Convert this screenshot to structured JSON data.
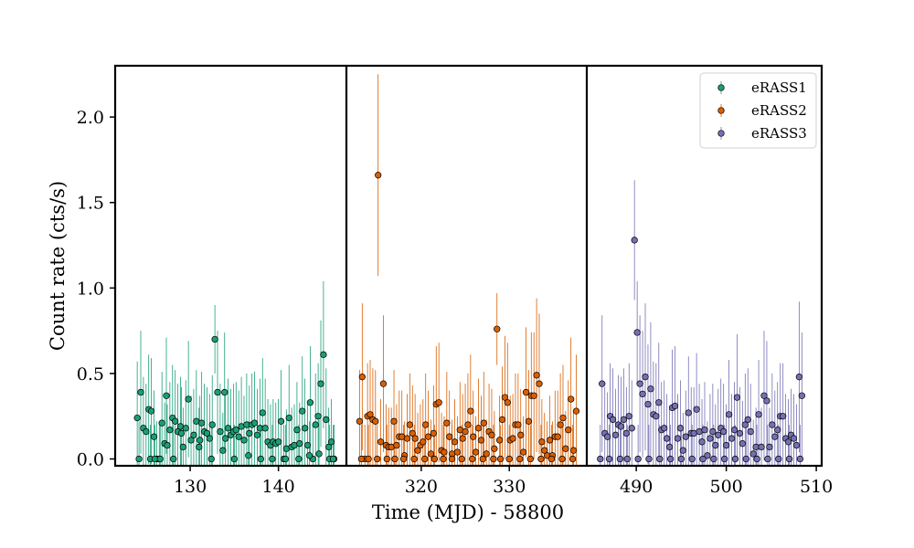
{
  "chart_data": {
    "type": "scatter",
    "xlabel": "Time (MJD) - 58800",
    "ylabel": "Count rate (cts/s)",
    "ylim": [
      -0.04,
      2.3
    ],
    "yticks": [
      "0.0",
      "0.5",
      "1.0",
      "1.5",
      "2.0"
    ],
    "legend_position": "top-right",
    "panels": [
      {
        "xlim": [
          121.5,
          147.7
        ],
        "xticks": [
          "130",
          "140"
        ],
        "series": [
          {
            "name": "eRASS1",
            "color": "#1b9e77",
            "x": [
              124.0,
              124.4,
              124.7,
              125.0,
              125.3,
              125.6,
              125.9,
              126.2,
              126.5,
              126.8,
              127.1,
              127.4,
              127.7,
              128.0,
              128.3,
              128.6,
              128.9,
              129.2,
              129.5,
              129.8,
              130.1,
              130.4,
              130.7,
              131.0,
              131.3,
              131.6,
              131.9,
              132.2,
              132.5,
              132.8,
              133.1,
              133.4,
              133.7,
              134.0,
              134.3,
              134.6,
              134.9,
              135.2,
              135.5,
              135.8,
              136.1,
              136.4,
              136.7,
              137.0,
              137.3,
              137.6,
              137.9,
              138.2,
              138.5,
              138.8,
              139.1,
              139.4,
              139.7,
              140.0,
              140.3,
              140.6,
              140.9,
              141.2,
              141.5,
              141.8,
              142.1,
              142.4,
              142.7,
              143.0,
              143.3,
              143.6,
              143.9,
              144.2,
              144.5,
              144.8,
              145.1,
              145.4,
              145.7,
              146.0,
              146.3,
              124.2,
              125.5,
              126.0,
              126.6,
              127.3,
              128.1,
              129.0,
              131.1,
              132.4,
              133.9,
              135.0,
              136.6,
              138.0,
              139.3,
              140.8,
              142.3,
              143.5,
              144.6,
              145.8,
              146.2
            ],
            "y": [
              0.24,
              0.39,
              0.18,
              0.16,
              0.29,
              0.28,
              0.13,
              0.0,
              0.0,
              0.21,
              0.09,
              0.08,
              0.17,
              0.24,
              0.22,
              0.16,
              0.19,
              0.07,
              0.18,
              0.35,
              0.11,
              0.14,
              0.22,
              0.07,
              0.21,
              0.16,
              0.15,
              0.12,
              0.2,
              0.7,
              0.39,
              0.16,
              0.05,
              0.12,
              0.18,
              0.14,
              0.16,
              0.17,
              0.13,
              0.19,
              0.11,
              0.2,
              0.15,
              0.2,
              0.21,
              0.14,
              0.18,
              0.27,
              0.18,
              0.1,
              0.08,
              0.1,
              0.09,
              0.1,
              0.22,
              0.0,
              0.06,
              0.24,
              0.07,
              0.08,
              0.17,
              0.09,
              0.28,
              0.18,
              0.08,
              0.33,
              0.0,
              0.2,
              0.25,
              0.44,
              0.61,
              0.23,
              0.07,
              0.1,
              0.0,
              0.0,
              0.0,
              0.0,
              0.0,
              0.37,
              0.0,
              0.15,
              0.11,
              0.0,
              0.39,
              0.0,
              0.02,
              0.0,
              0.0,
              0.0,
              0.0,
              0.02,
              0.03,
              0.0,
              0.0
            ],
            "err": [
              0.33,
              0.36,
              0.3,
              0.28,
              0.32,
              0.31,
              0.27,
              0.22,
              0.2,
              0.3,
              0.24,
              0.24,
              0.28,
              0.31,
              0.3,
              0.28,
              0.29,
              0.23,
              0.28,
              0.34,
              0.26,
              0.27,
              0.3,
              0.23,
              0.3,
              0.28,
              0.27,
              0.26,
              0.29,
              0.2,
              0.36,
              0.28,
              0.22,
              0.26,
              0.29,
              0.27,
              0.28,
              0.28,
              0.27,
              0.29,
              0.26,
              0.3,
              0.28,
              0.3,
              0.3,
              0.27,
              0.29,
              0.32,
              0.29,
              0.25,
              0.24,
              0.25,
              0.24,
              0.25,
              0.3,
              0.2,
              0.23,
              0.31,
              0.23,
              0.24,
              0.28,
              0.24,
              0.32,
              0.29,
              0.24,
              0.33,
              0.2,
              0.3,
              0.31,
              0.37,
              0.43,
              0.3,
              0.23,
              0.25,
              0.2,
              0.22,
              0.2,
              0.2,
              0.2,
              0.34,
              0.2,
              0.27,
              0.26,
              0.2,
              0.35,
              0.2,
              0.2,
              0.2,
              0.2,
              0.2,
              0.2,
              0.2,
              0.2,
              0.2,
              0.2
            ]
          }
        ]
      },
      {
        "xlim": [
          311.5,
          338.8
        ],
        "xticks": [
          "320",
          "330"
        ],
        "series": [
          {
            "name": "eRASS2",
            "color": "#d95f02",
            "x": [
              313.0,
              313.3,
              313.6,
              313.9,
              314.2,
              314.5,
              314.8,
              315.1,
              315.4,
              315.7,
              316.0,
              316.3,
              316.6,
              316.9,
              317.2,
              317.5,
              317.8,
              318.1,
              318.4,
              318.7,
              319.0,
              319.3,
              319.6,
              319.9,
              320.2,
              320.5,
              320.8,
              321.1,
              321.4,
              321.7,
              322.0,
              322.3,
              322.6,
              322.9,
              323.2,
              323.5,
              323.8,
              324.1,
              324.4,
              324.7,
              325.0,
              325.3,
              325.6,
              325.9,
              326.2,
              326.5,
              326.8,
              327.1,
              327.4,
              327.7,
              328.0,
              328.3,
              328.6,
              328.9,
              329.2,
              329.5,
              329.8,
              330.1,
              330.4,
              330.7,
              331.0,
              331.3,
              331.6,
              331.9,
              332.2,
              332.5,
              332.8,
              333.1,
              333.4,
              333.7,
              334.0,
              334.3,
              334.6,
              334.9,
              335.2,
              335.5,
              335.8,
              336.1,
              336.4,
              336.7,
              337.0,
              337.3,
              337.6,
              313.2,
              314.0,
              315.0,
              316.1,
              317.0,
              318.0,
              319.2,
              320.4,
              321.5,
              322.5,
              323.5,
              324.6,
              325.8,
              327.0,
              328.2,
              329.0,
              330.0,
              331.2,
              332.4,
              333.6,
              334.8,
              336.0,
              337.2
            ],
            "y": [
              0.22,
              0.48,
              0.0,
              0.25,
              0.26,
              0.23,
              0.22,
              1.66,
              0.1,
              0.44,
              0.08,
              0.07,
              0.07,
              0.22,
              0.08,
              0.13,
              0.13,
              0.02,
              0.12,
              0.2,
              0.15,
              0.12,
              0.05,
              0.08,
              0.1,
              0.2,
              0.13,
              0.03,
              0.15,
              0.32,
              0.33,
              0.05,
              0.04,
              0.21,
              0.13,
              0.03,
              0.1,
              0.04,
              0.17,
              0.12,
              0.16,
              0.2,
              0.28,
              0.13,
              0.04,
              0.18,
              0.11,
              0.21,
              0.03,
              0.16,
              0.14,
              0.06,
              0.76,
              0.11,
              0.23,
              0.36,
              0.33,
              0.11,
              0.12,
              0.2,
              0.2,
              0.14,
              0.04,
              0.39,
              0.22,
              0.37,
              0.37,
              0.49,
              0.44,
              0.1,
              0.05,
              0.02,
              0.11,
              0.02,
              0.13,
              0.13,
              0.2,
              0.24,
              0.06,
              0.17,
              0.35,
              0.05,
              0.28,
              0.0,
              0.0,
              0.0,
              0.0,
              0.0,
              0.0,
              0.0,
              0.0,
              0.0,
              0.0,
              0.0,
              0.0,
              0.0,
              0.0,
              0.0,
              0.0,
              0.0,
              0.0,
              0.0,
              0.0,
              0.0,
              0.0,
              0.0
            ],
            "err": [
              0.3,
              0.43,
              0.2,
              0.31,
              0.32,
              0.3,
              0.3,
              0.59,
              0.25,
              0.4,
              0.24,
              0.23,
              0.23,
              0.3,
              0.24,
              0.27,
              0.27,
              0.2,
              0.26,
              0.3,
              0.28,
              0.26,
              0.22,
              0.24,
              0.25,
              0.3,
              0.27,
              0.2,
              0.28,
              0.34,
              0.35,
              0.22,
              0.21,
              0.3,
              0.27,
              0.2,
              0.25,
              0.21,
              0.28,
              0.26,
              0.28,
              0.3,
              0.33,
              0.27,
              0.21,
              0.29,
              0.26,
              0.3,
              0.2,
              0.28,
              0.27,
              0.22,
              0.21,
              0.26,
              0.31,
              0.36,
              0.35,
              0.26,
              0.26,
              0.3,
              0.3,
              0.27,
              0.21,
              0.38,
              0.3,
              0.37,
              0.37,
              0.45,
              0.41,
              0.25,
              0.22,
              0.2,
              0.26,
              0.2,
              0.27,
              0.27,
              0.3,
              0.31,
              0.22,
              0.29,
              0.36,
              0.22,
              0.33,
              0.2,
              0.2,
              0.2,
              0.2,
              0.2,
              0.2,
              0.2,
              0.2,
              0.2,
              0.2,
              0.2,
              0.2,
              0.2,
              0.2,
              0.2,
              0.2,
              0.2,
              0.2,
              0.2,
              0.2,
              0.2,
              0.2,
              0.2
            ]
          }
        ]
      },
      {
        "xlim": [
          484.5,
          510.6
        ],
        "xticks": [
          "490",
          "500",
          "510"
        ],
        "series": [
          {
            "name": "eRASS3",
            "color": "#7570b3",
            "x": [
              486.2,
              486.5,
              486.8,
              487.1,
              487.4,
              487.7,
              488.0,
              488.3,
              488.6,
              488.9,
              489.2,
              489.5,
              489.8,
              490.1,
              490.4,
              490.7,
              491.0,
              491.3,
              491.6,
              491.9,
              492.2,
              492.5,
              492.8,
              493.1,
              493.4,
              493.7,
              494.0,
              494.3,
              494.6,
              494.9,
              495.2,
              495.5,
              495.8,
              496.1,
              496.4,
              496.7,
              497.0,
              497.3,
              497.6,
              497.9,
              498.2,
              498.5,
              498.8,
              499.1,
              499.4,
              499.7,
              500.0,
              500.3,
              500.6,
              500.9,
              501.2,
              501.5,
              501.8,
              502.1,
              502.4,
              502.7,
              503.0,
              503.3,
              503.6,
              503.9,
              504.2,
              504.5,
              504.8,
              505.1,
              505.4,
              505.7,
              506.0,
              506.3,
              506.6,
              506.9,
              507.2,
              507.5,
              507.8,
              508.1,
              508.4,
              486.0,
              487.0,
              488.2,
              489.0,
              490.2,
              491.4,
              492.6,
              493.8,
              495.0,
              496.2,
              497.4,
              498.6,
              499.8,
              501.0,
              502.2,
              503.4,
              504.6,
              505.8,
              507.0,
              508.2
            ],
            "y": [
              0.44,
              0.15,
              0.13,
              0.25,
              0.23,
              0.14,
              0.2,
              0.19,
              0.23,
              0.15,
              0.25,
              0.18,
              1.28,
              0.74,
              0.44,
              0.38,
              0.48,
              0.32,
              0.41,
              0.26,
              0.25,
              0.33,
              0.17,
              0.18,
              0.12,
              0.07,
              0.3,
              0.31,
              0.12,
              0.18,
              0.05,
              0.13,
              0.27,
              0.15,
              0.15,
              0.29,
              0.16,
              0.1,
              0.17,
              0.02,
              0.12,
              0.16,
              0.08,
              0.14,
              0.18,
              0.16,
              0.08,
              0.26,
              0.12,
              0.17,
              0.36,
              0.15,
              0.09,
              0.2,
              0.23,
              0.16,
              0.03,
              0.07,
              0.26,
              0.07,
              0.37,
              0.34,
              0.07,
              0.2,
              0.13,
              0.17,
              0.25,
              0.25,
              0.12,
              0.1,
              0.14,
              0.12,
              0.08,
              0.48,
              0.37,
              0.0,
              0.0,
              0.0,
              0.0,
              0.0,
              0.0,
              0.0,
              0.0,
              0.0,
              0.0,
              0.0,
              0.0,
              0.0,
              0.0,
              0.0,
              0.0,
              0.0,
              0.0,
              0.0,
              0.0
            ],
            "err": [
              0.4,
              0.27,
              0.26,
              0.31,
              0.3,
              0.27,
              0.29,
              0.29,
              0.3,
              0.27,
              0.31,
              0.28,
              0.35,
              0.3,
              0.4,
              0.37,
              0.43,
              0.35,
              0.39,
              0.31,
              0.31,
              0.35,
              0.28,
              0.28,
              0.26,
              0.23,
              0.34,
              0.35,
              0.26,
              0.28,
              0.22,
              0.27,
              0.33,
              0.27,
              0.27,
              0.33,
              0.28,
              0.25,
              0.28,
              0.2,
              0.26,
              0.28,
              0.24,
              0.27,
              0.29,
              0.28,
              0.24,
              0.32,
              0.26,
              0.28,
              0.37,
              0.27,
              0.25,
              0.3,
              0.3,
              0.28,
              0.2,
              0.23,
              0.32,
              0.23,
              0.38,
              0.35,
              0.23,
              0.3,
              0.27,
              0.28,
              0.31,
              0.31,
              0.26,
              0.25,
              0.27,
              0.26,
              0.24,
              0.44,
              0.37,
              0.2,
              0.2,
              0.2,
              0.2,
              0.2,
              0.2,
              0.2,
              0.2,
              0.2,
              0.2,
              0.2,
              0.2,
              0.2,
              0.2,
              0.2,
              0.2,
              0.2,
              0.2,
              0.2,
              0.2
            ]
          }
        ]
      }
    ]
  }
}
